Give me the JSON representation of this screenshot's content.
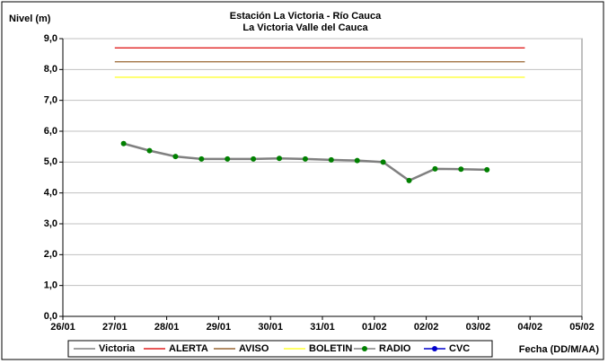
{
  "chart_data": {
    "type": "line",
    "title": "Estación La Victoria - Río Cauca",
    "subtitle": "La Victoria Valle del Cauca",
    "y_label": "Nivel (m)",
    "x_label": "Fecha (DD/M/AA)",
    "xlim": [
      26,
      36
    ],
    "xticks": [
      {
        "value": 26,
        "label": "26/01"
      },
      {
        "value": 27,
        "label": "27/01"
      },
      {
        "value": 28,
        "label": "28/01"
      },
      {
        "value": 29,
        "label": "29/01"
      },
      {
        "value": 30,
        "label": "30/01"
      },
      {
        "value": 31,
        "label": "31/01"
      },
      {
        "value": 32,
        "label": "01/02"
      },
      {
        "value": 33,
        "label": "02/02"
      },
      {
        "value": 34,
        "label": "03/02"
      },
      {
        "value": 35,
        "label": "04/02"
      },
      {
        "value": 36,
        "label": "05/02"
      }
    ],
    "ylim": [
      0,
      9
    ],
    "yticks": [
      {
        "value": 0,
        "label": "0,0"
      },
      {
        "value": 1,
        "label": "1,0"
      },
      {
        "value": 2,
        "label": "2,0"
      },
      {
        "value": 3,
        "label": "3,0"
      },
      {
        "value": 4,
        "label": "4,0"
      },
      {
        "value": 5,
        "label": "5,0"
      },
      {
        "value": 6,
        "label": "6,0"
      },
      {
        "value": 7,
        "label": "7,0"
      },
      {
        "value": 8,
        "label": "8,0"
      },
      {
        "value": 9,
        "label": "9,0"
      }
    ],
    "grid": true,
    "series": [
      {
        "name": "Victoria",
        "color": "#808080"
      },
      {
        "name": "ALERTA",
        "color": "#e02020",
        "x": [
          27,
          34.9
        ],
        "values": [
          8.7,
          8.7
        ]
      },
      {
        "name": "AVISO",
        "color": "#996633",
        "x": [
          27,
          34.9
        ],
        "values": [
          8.25,
          8.25
        ]
      },
      {
        "name": "BOLETIN",
        "color": "#ffff33",
        "x": [
          27,
          34.9
        ],
        "values": [
          7.75,
          7.75
        ]
      },
      {
        "name": "RADIO",
        "color": "#008000",
        "line_color": "#808080",
        "x": [
          27.17,
          27.67,
          28.17,
          28.67,
          29.17,
          29.67,
          30.17,
          30.67,
          31.17,
          31.67,
          32.17,
          32.67,
          33.17,
          33.67,
          34.17
        ],
        "values": [
          5.6,
          5.37,
          5.18,
          5.1,
          5.1,
          5.1,
          5.12,
          5.1,
          5.07,
          5.05,
          5.0,
          4.4,
          4.78,
          4.77,
          4.75
        ]
      },
      {
        "name": "CVC",
        "color": "#0000cc"
      }
    ]
  }
}
